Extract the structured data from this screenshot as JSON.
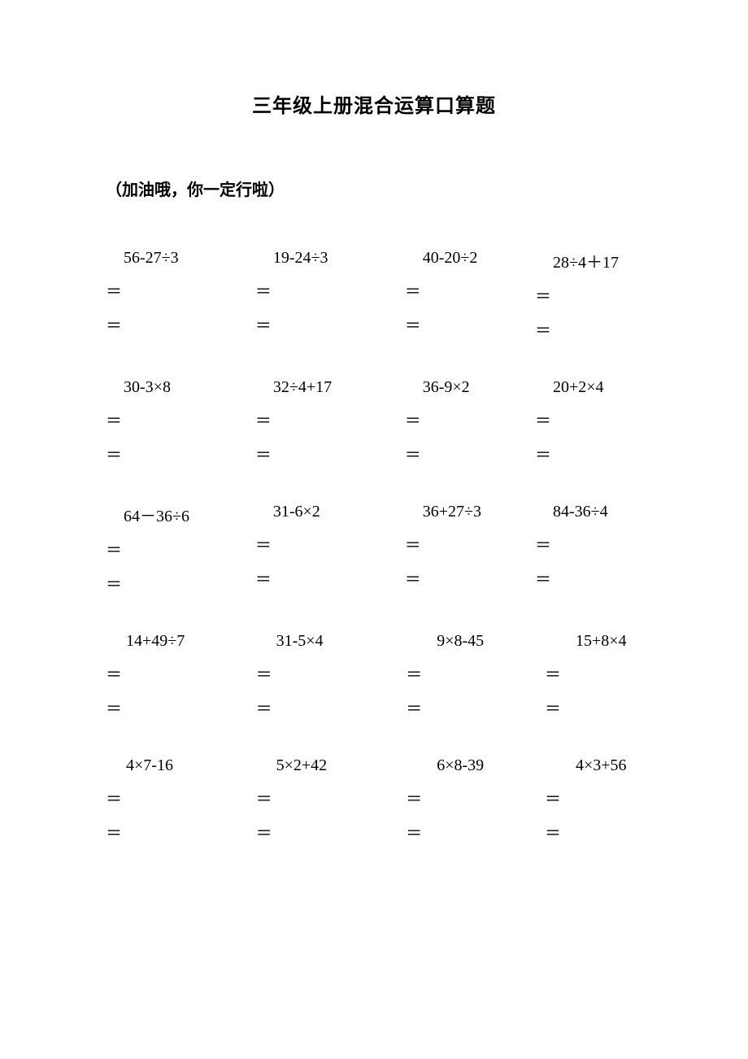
{
  "title": "三年级上册混合运算口算题",
  "subtitle": "（加油哦，你一定行啦）",
  "equals_sign": "＝",
  "rows": [
    {
      "problems": [
        {
          "expression": "56-27÷3"
        },
        {
          "expression": "19-24÷3"
        },
        {
          "expression": "40-20÷2"
        },
        {
          "expression": "28÷4＋17"
        }
      ]
    },
    {
      "problems": [
        {
          "expression": "30-3×8"
        },
        {
          "expression": "32÷4+17"
        },
        {
          "expression": "36-9×2"
        },
        {
          "expression": "20+2×4"
        }
      ]
    },
    {
      "problems": [
        {
          "expression": "64－36÷6"
        },
        {
          "expression": "31-6×2"
        },
        {
          "expression": "36+27÷3"
        },
        {
          "expression": "84-36÷4"
        }
      ]
    },
    {
      "problems": [
        {
          "expression": "14+49÷7"
        },
        {
          "expression": "31-5×4"
        },
        {
          "expression": "9×8-45"
        },
        {
          "expression": "15+8×4"
        }
      ]
    },
    {
      "problems": [
        {
          "expression": "4×7-16"
        },
        {
          "expression": "5×2+42"
        },
        {
          "expression": "6×8-39"
        },
        {
          "expression": "4×3+56"
        }
      ]
    }
  ]
}
